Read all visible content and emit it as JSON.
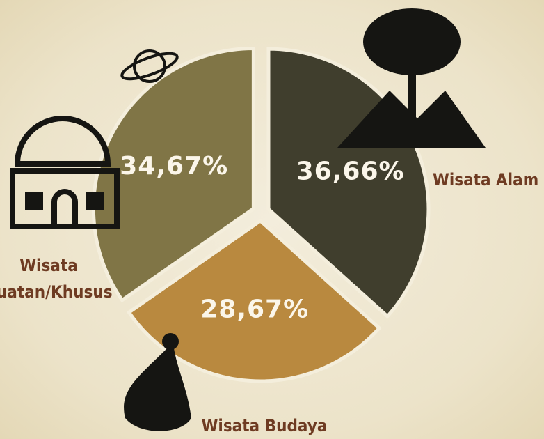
{
  "chart_data": {
    "type": "pie",
    "categories": [
      "Wisata Alam",
      "Wisata Budaya",
      "Wisata Buatan/Khusus"
    ],
    "values": [
      36.66,
      28.67,
      34.67
    ],
    "value_labels": [
      "36,66%",
      "28,67%",
      "34,67%"
    ],
    "colors": [
      "#403e2d",
      "#b9893f",
      "#807546"
    ]
  }
}
